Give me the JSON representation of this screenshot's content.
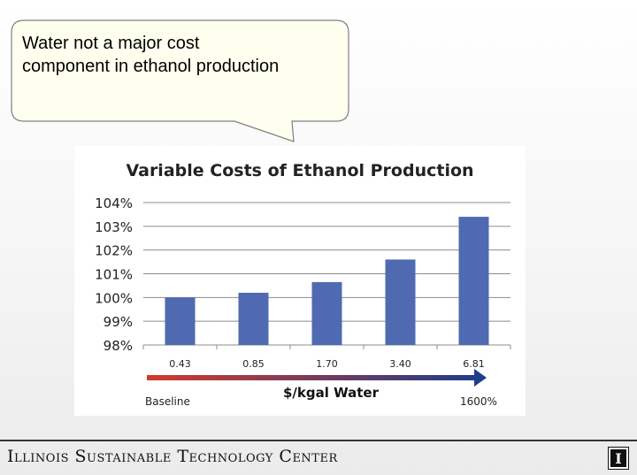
{
  "callout": {
    "line1": "Water not a major cost",
    "line2": "component in ethanol production",
    "fill": "#fffff0",
    "stroke": "#7f7f7f"
  },
  "chart_data": {
    "type": "bar",
    "title": "Variable Costs of Ethanol Production",
    "xlabel": "$/kgal Water",
    "categories": [
      "0.43",
      "0.85",
      "1.70",
      "3.40",
      "6.81"
    ],
    "values": [
      100.0,
      100.2,
      100.65,
      101.6,
      103.4
    ],
    "ylim": [
      98,
      104
    ],
    "yticks": [
      "98%",
      "99%",
      "100%",
      "101%",
      "102%",
      "103%",
      "104%"
    ],
    "grid": true,
    "bar_color": "#4f6ab0",
    "annotations": {
      "start": "Baseline",
      "end": "1600%"
    }
  },
  "footer": {
    "title": "Illinois Sustainable Technology Center",
    "logo_letter": "I"
  }
}
